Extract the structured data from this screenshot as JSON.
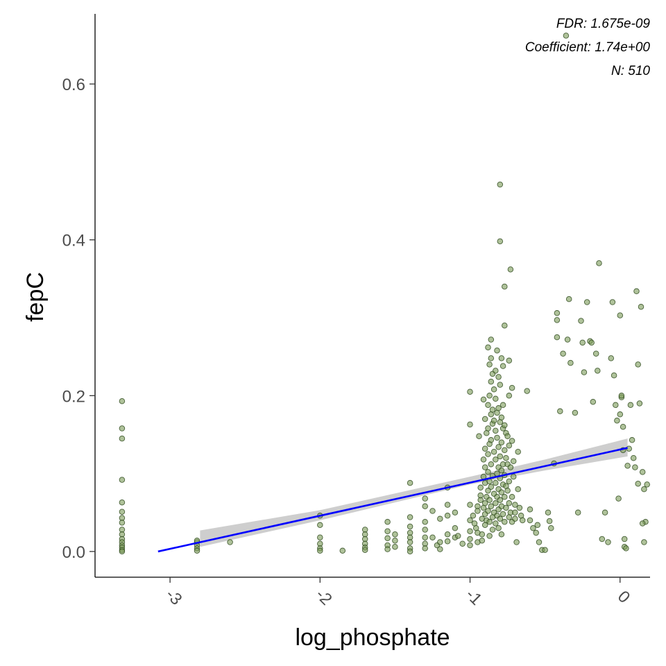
{
  "chart_data": {
    "type": "scatter",
    "title": "",
    "xlabel": "log_phosphate",
    "ylabel": "fepC",
    "xlim": [
      -3.5,
      0.2
    ],
    "ylim": [
      -0.033,
      0.69
    ],
    "xticks": [
      -3,
      -2,
      -1,
      0
    ],
    "xtick_labels": [
      "-3",
      "-2",
      "-1",
      "0"
    ],
    "yticks": [
      0.0,
      0.2,
      0.4,
      0.6
    ],
    "ytick_labels": [
      "0.0",
      "0.2",
      "0.4",
      "0.6"
    ],
    "grid": false,
    "annotations": [
      "FDR: 1.675e-09",
      "Coefficient: 1.74e+00",
      "N: 510"
    ],
    "colors": {
      "points": "#7a9a56",
      "point_outline": "#2f4a1f",
      "fit_line": "#0000ff",
      "ribbon": "#bebebe"
    },
    "fit": {
      "x": [
        -3.08,
        0.05
      ],
      "y": [
        0.0,
        0.133
      ],
      "ribbon_x": [
        -2.8,
        -2.0,
        -1.0,
        -0.5,
        0.05
      ],
      "ribbon_lower": [
        0.006,
        0.04,
        0.086,
        0.104,
        0.122
      ],
      "ribbon_upper": [
        0.027,
        0.053,
        0.096,
        0.118,
        0.145
      ]
    },
    "points": [
      [
        -3.32,
        0.193
      ],
      [
        -3.32,
        0.158
      ],
      [
        -3.32,
        0.145
      ],
      [
        -3.32,
        0.092
      ],
      [
        -3.32,
        0.063
      ],
      [
        -3.32,
        0.051
      ],
      [
        -3.32,
        0.043
      ],
      [
        -3.32,
        0.037
      ],
      [
        -3.32,
        0.028
      ],
      [
        -3.32,
        0.022
      ],
      [
        -3.32,
        0.016
      ],
      [
        -3.32,
        0.012
      ],
      [
        -3.32,
        0.008
      ],
      [
        -3.32,
        0.005
      ],
      [
        -3.32,
        0.002
      ],
      [
        -3.32,
        0.0
      ],
      [
        -2.82,
        0.012
      ],
      [
        -2.82,
        0.008
      ],
      [
        -2.82,
        0.004
      ],
      [
        -2.82,
        0.001
      ],
      [
        -2.82,
        0.014
      ],
      [
        -2.6,
        0.012
      ],
      [
        -2.0,
        0.046
      ],
      [
        -2.0,
        0.034
      ],
      [
        -2.0,
        0.018
      ],
      [
        -2.0,
        0.01
      ],
      [
        -2.0,
        0.004
      ],
      [
        -2.0,
        0.001
      ],
      [
        -1.85,
        0.001
      ],
      [
        -1.7,
        0.028
      ],
      [
        -1.7,
        0.022
      ],
      [
        -1.7,
        0.016
      ],
      [
        -1.7,
        0.01
      ],
      [
        -1.7,
        0.005
      ],
      [
        -1.7,
        0.002
      ],
      [
        -1.55,
        0.038
      ],
      [
        -1.55,
        0.026
      ],
      [
        -1.55,
        0.017
      ],
      [
        -1.55,
        0.008
      ],
      [
        -1.55,
        0.003
      ],
      [
        -1.5,
        0.022
      ],
      [
        -1.5,
        0.014
      ],
      [
        -1.5,
        0.006
      ],
      [
        -1.4,
        0.088
      ],
      [
        -1.4,
        0.044
      ],
      [
        -1.4,
        0.032
      ],
      [
        -1.4,
        0.024
      ],
      [
        -1.4,
        0.018
      ],
      [
        -1.4,
        0.012
      ],
      [
        -1.4,
        0.004
      ],
      [
        -1.4,
        0.0
      ],
      [
        -1.3,
        0.068
      ],
      [
        -1.3,
        0.058
      ],
      [
        -1.3,
        0.038
      ],
      [
        -1.3,
        0.028
      ],
      [
        -1.3,
        0.018
      ],
      [
        -1.3,
        0.01
      ],
      [
        -1.3,
        0.004
      ],
      [
        -1.25,
        0.052
      ],
      [
        -1.25,
        0.018
      ],
      [
        -1.22,
        0.008
      ],
      [
        -1.2,
        0.042
      ],
      [
        -1.2,
        0.012
      ],
      [
        -1.2,
        0.003
      ],
      [
        -1.15,
        0.082
      ],
      [
        -1.15,
        0.06
      ],
      [
        -1.15,
        0.046
      ],
      [
        -1.15,
        0.022
      ],
      [
        -1.15,
        0.013
      ],
      [
        -1.1,
        0.05
      ],
      [
        -1.1,
        0.03
      ],
      [
        -1.1,
        0.018
      ],
      [
        -1.08,
        0.02
      ],
      [
        -1.05,
        0.01
      ],
      [
        -1.0,
        0.205
      ],
      [
        -1.0,
        0.163
      ],
      [
        -1.0,
        0.06
      ],
      [
        -1.0,
        0.04
      ],
      [
        -1.0,
        0.026
      ],
      [
        -1.0,
        0.016
      ],
      [
        -1.0,
        0.008
      ],
      [
        -0.98,
        0.046
      ],
      [
        -0.97,
        0.036
      ],
      [
        -0.96,
        0.03
      ],
      [
        -0.95,
        0.058
      ],
      [
        -0.95,
        0.052
      ],
      [
        -0.95,
        0.024
      ],
      [
        -0.95,
        0.012
      ],
      [
        -0.94,
        0.148
      ],
      [
        -0.93,
        0.066
      ],
      [
        -0.93,
        0.072
      ],
      [
        -0.93,
        0.082
      ],
      [
        -0.92,
        0.042
      ],
      [
        -0.92,
        0.022
      ],
      [
        -0.92,
        0.014
      ],
      [
        -0.91,
        0.195
      ],
      [
        -0.91,
        0.118
      ],
      [
        -0.91,
        0.096
      ],
      [
        -0.91,
        0.056
      ],
      [
        -0.9,
        0.17
      ],
      [
        -0.9,
        0.132
      ],
      [
        -0.9,
        0.108
      ],
      [
        -0.9,
        0.088
      ],
      [
        -0.9,
        0.062
      ],
      [
        -0.9,
        0.048
      ],
      [
        -0.9,
        0.034
      ],
      [
        -0.89,
        0.152
      ],
      [
        -0.89,
        0.07
      ],
      [
        -0.89,
        0.04
      ],
      [
        -0.88,
        0.262
      ],
      [
        -0.88,
        0.188
      ],
      [
        -0.88,
        0.158
      ],
      [
        -0.88,
        0.125
      ],
      [
        -0.88,
        0.102
      ],
      [
        -0.88,
        0.078
      ],
      [
        -0.88,
        0.052
      ],
      [
        -0.87,
        0.24
      ],
      [
        -0.87,
        0.2
      ],
      [
        -0.87,
        0.138
      ],
      [
        -0.87,
        0.09
      ],
      [
        -0.87,
        0.066
      ],
      [
        -0.87,
        0.038
      ],
      [
        -0.87,
        0.02
      ],
      [
        -0.86,
        0.272
      ],
      [
        -0.86,
        0.248
      ],
      [
        -0.86,
        0.218
      ],
      [
        -0.86,
        0.176
      ],
      [
        -0.86,
        0.143
      ],
      [
        -0.86,
        0.112
      ],
      [
        -0.86,
        0.083
      ],
      [
        -0.86,
        0.058
      ],
      [
        -0.85,
        0.228
      ],
      [
        -0.85,
        0.182
      ],
      [
        -0.85,
        0.164
      ],
      [
        -0.85,
        0.097
      ],
      [
        -0.85,
        0.044
      ],
      [
        -0.85,
        0.028
      ],
      [
        -0.84,
        0.208
      ],
      [
        -0.84,
        0.168
      ],
      [
        -0.84,
        0.128
      ],
      [
        -0.84,
        0.074
      ],
      [
        -0.84,
        0.05
      ],
      [
        -0.83,
        0.232
      ],
      [
        -0.83,
        0.196
      ],
      [
        -0.83,
        0.155
      ],
      [
        -0.83,
        0.118
      ],
      [
        -0.83,
        0.088
      ],
      [
        -0.83,
        0.062
      ],
      [
        -0.83,
        0.036
      ],
      [
        -0.82,
        0.258
      ],
      [
        -0.82,
        0.178
      ],
      [
        -0.82,
        0.146
      ],
      [
        -0.82,
        0.1
      ],
      [
        -0.82,
        0.07
      ],
      [
        -0.82,
        0.046
      ],
      [
        -0.81,
        0.224
      ],
      [
        -0.81,
        0.184
      ],
      [
        -0.81,
        0.134
      ],
      [
        -0.81,
        0.108
      ],
      [
        -0.81,
        0.08
      ],
      [
        -0.81,
        0.054
      ],
      [
        -0.81,
        0.03
      ],
      [
        -0.8,
        0.471
      ],
      [
        -0.8,
        0.398
      ],
      [
        -0.8,
        0.214
      ],
      [
        -0.8,
        0.166
      ],
      [
        -0.8,
        0.122
      ],
      [
        -0.8,
        0.094
      ],
      [
        -0.8,
        0.066
      ],
      [
        -0.8,
        0.042
      ],
      [
        -0.79,
        0.248
      ],
      [
        -0.79,
        0.172
      ],
      [
        -0.79,
        0.14
      ],
      [
        -0.79,
        0.104
      ],
      [
        -0.79,
        0.076
      ],
      [
        -0.79,
        0.058
      ],
      [
        -0.79,
        0.022
      ],
      [
        -0.78,
        0.238
      ],
      [
        -0.78,
        0.188
      ],
      [
        -0.78,
        0.158
      ],
      [
        -0.78,
        0.112
      ],
      [
        -0.78,
        0.086
      ],
      [
        -0.78,
        0.048
      ],
      [
        -0.77,
        0.34
      ],
      [
        -0.77,
        0.29
      ],
      [
        -0.77,
        0.162
      ],
      [
        -0.77,
        0.13
      ],
      [
        -0.77,
        0.098
      ],
      [
        -0.77,
        0.07
      ],
      [
        -0.77,
        0.038
      ],
      [
        -0.76,
        0.152
      ],
      [
        -0.76,
        0.12
      ],
      [
        -0.76,
        0.084
      ],
      [
        -0.76,
        0.056
      ],
      [
        -0.75,
        0.148
      ],
      [
        -0.75,
        0.112
      ],
      [
        -0.75,
        0.078
      ],
      [
        -0.74,
        0.245
      ],
      [
        -0.74,
        0.2
      ],
      [
        -0.74,
        0.136
      ],
      [
        -0.74,
        0.09
      ],
      [
        -0.74,
        0.062
      ],
      [
        -0.74,
        0.044
      ],
      [
        -0.73,
        0.362
      ],
      [
        -0.73,
        0.108
      ],
      [
        -0.73,
        0.05
      ],
      [
        -0.72,
        0.21
      ],
      [
        -0.72,
        0.142
      ],
      [
        -0.72,
        0.07
      ],
      [
        -0.72,
        0.038
      ],
      [
        -0.71,
        0.116
      ],
      [
        -0.71,
        0.096
      ],
      [
        -0.7,
        0.06
      ],
      [
        -0.7,
        0.05
      ],
      [
        -0.7,
        0.042
      ],
      [
        -0.69,
        0.012
      ],
      [
        -0.68,
        0.128
      ],
      [
        -0.68,
        0.08
      ],
      [
        -0.67,
        0.056
      ],
      [
        -0.66,
        0.046
      ],
      [
        -0.65,
        0.04
      ],
      [
        -0.62,
        0.206
      ],
      [
        -0.6,
        0.054
      ],
      [
        -0.6,
        0.04
      ],
      [
        -0.58,
        0.03
      ],
      [
        -0.56,
        0.024
      ],
      [
        -0.55,
        0.034
      ],
      [
        -0.54,
        0.012
      ],
      [
        -0.52,
        0.002
      ],
      [
        -0.5,
        0.002
      ],
      [
        -0.48,
        0.05
      ],
      [
        -0.47,
        0.039
      ],
      [
        -0.46,
        0.03
      ],
      [
        -0.44,
        0.113
      ],
      [
        -0.42,
        0.306
      ],
      [
        -0.42,
        0.297
      ],
      [
        -0.42,
        0.275
      ],
      [
        -0.4,
        0.18
      ],
      [
        -0.38,
        0.254
      ],
      [
        -0.36,
        0.662
      ],
      [
        -0.35,
        0.272
      ],
      [
        -0.34,
        0.324
      ],
      [
        -0.33,
        0.242
      ],
      [
        -0.3,
        0.178
      ],
      [
        -0.28,
        0.05
      ],
      [
        -0.26,
        0.296
      ],
      [
        -0.25,
        0.268
      ],
      [
        -0.24,
        0.23
      ],
      [
        -0.22,
        0.32
      ],
      [
        -0.2,
        0.27
      ],
      [
        -0.19,
        0.268
      ],
      [
        -0.18,
        0.192
      ],
      [
        -0.16,
        0.254
      ],
      [
        -0.15,
        0.232
      ],
      [
        -0.14,
        0.37
      ],
      [
        -0.12,
        0.016
      ],
      [
        -0.1,
        0.05
      ],
      [
        -0.08,
        0.012
      ],
      [
        -0.06,
        0.248
      ],
      [
        -0.05,
        0.32
      ],
      [
        -0.04,
        0.226
      ],
      [
        -0.03,
        0.188
      ],
      [
        -0.02,
        0.168
      ],
      [
        -0.01,
        0.068
      ],
      [
        0.0,
        0.303
      ],
      [
        0.0,
        0.176
      ],
      [
        0.01,
        0.198
      ],
      [
        0.01,
        0.2
      ],
      [
        0.02,
        0.16
      ],
      [
        0.02,
        0.13
      ],
      [
        0.03,
        0.016
      ],
      [
        0.03,
        0.006
      ],
      [
        0.04,
        0.004
      ],
      [
        0.05,
        0.11
      ],
      [
        0.06,
        0.132
      ],
      [
        0.07,
        0.188
      ],
      [
        0.08,
        0.143
      ],
      [
        0.09,
        0.12
      ],
      [
        0.1,
        0.108
      ],
      [
        0.11,
        0.334
      ],
      [
        0.12,
        0.24
      ],
      [
        0.13,
        0.19
      ],
      [
        0.14,
        0.314
      ],
      [
        0.15,
        0.102
      ],
      [
        0.16,
        0.08
      ],
      [
        0.16,
        0.012
      ],
      [
        0.17,
        0.038
      ],
      [
        0.18,
        0.086
      ],
      [
        0.15,
        0.036
      ],
      [
        0.12,
        0.087
      ]
    ]
  }
}
